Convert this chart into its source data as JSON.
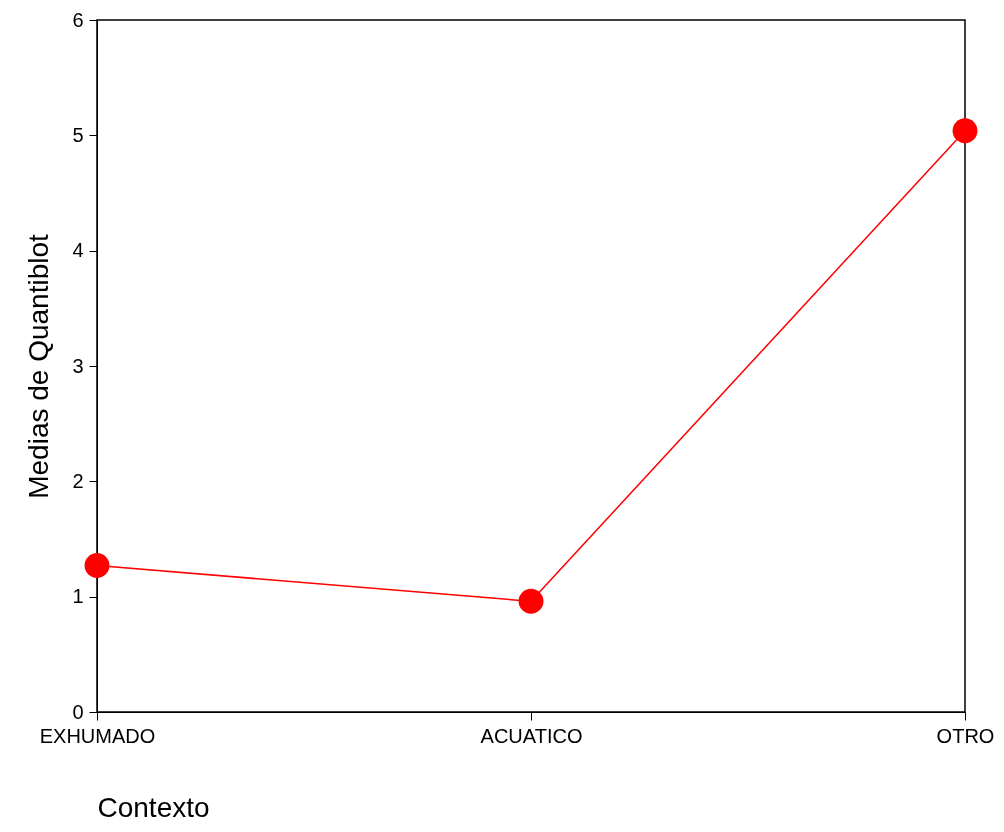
{
  "chart_data": {
    "type": "line",
    "xlabel": "Contexto",
    "ylabel": "Medias de Quantiblot",
    "categories": [
      "EXHUMADO",
      "ACUATICO",
      "OTRO"
    ],
    "series": [
      {
        "color": "#ff0000",
        "values": [
          1.27,
          0.96,
          5.04
        ]
      }
    ],
    "ylim": [
      0,
      6
    ],
    "yticks": [
      0,
      1,
      2,
      3,
      4,
      5,
      6
    ],
    "marker": "circle",
    "line_style": "solid",
    "grid": false
  }
}
